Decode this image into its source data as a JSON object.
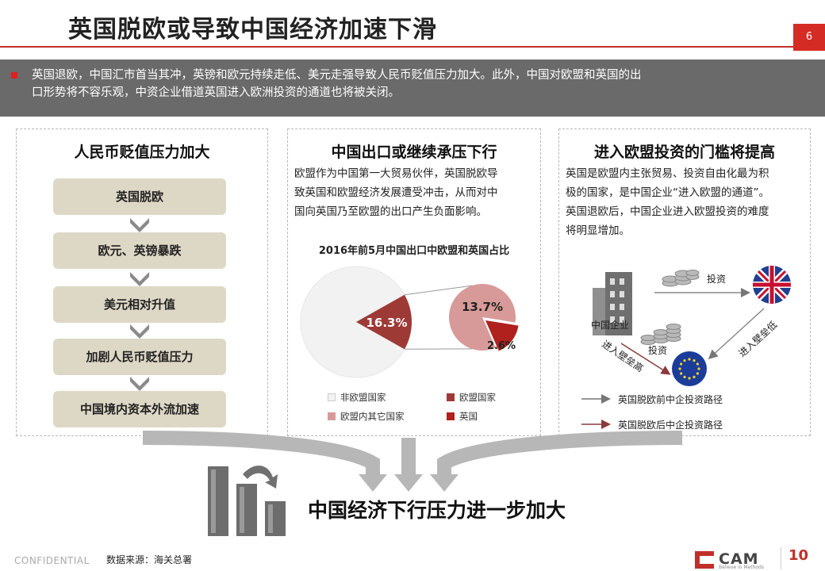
{
  "header": {
    "title": "英国脱欧或导致中国经济加速下滑",
    "page_number": "6"
  },
  "intro": {
    "line1": "英国退欧，中国汇市首当其冲，英镑和欧元持续走低、美元走强导致人民币贬值压力加大。此外，中国对欧盟和英国的出",
    "line2": "口形势将不容乐观，中资企业借道英国进入欧洲投资的通道也将被关闭。"
  },
  "panel_left": {
    "title": "人民币贬值压力加大",
    "steps": [
      "英国脱欧",
      "欧元、英镑暴跌",
      "美元相对升值",
      "加剧人民币贬值压力",
      "中国境内资本外流加速"
    ]
  },
  "panel_middle": {
    "title": "中国出口或继续承压下行",
    "body_lines": [
      "欧盟作为中国第一大贸易伙伴，英国脱欧导",
      "致英国和欧盟经济发展遭受冲击，从而对中",
      "国向英国乃至欧盟的出口产生负面影响。"
    ]
  },
  "panel_right": {
    "title": "进入欧盟投资的门槛将提高",
    "body_lines": [
      "英国是欧盟内主张贸易、投资自由化最为积",
      "极的国家，是中国企业“进入欧盟的通道”。",
      "英国退欧后，中国企业进入欧盟投资的难度",
      "将明显增加。"
    ],
    "diagram": {
      "label_invest_top": "投资",
      "label_china_firm": "中国企业",
      "label_invest_mid": "投资",
      "label_barrier_high": "进入壁垒高",
      "label_barrier_low": "进入壁垒低",
      "legend_before": "英国脱欧前中企投资路径",
      "legend_after": "英国脱欧后中企投资路径"
    }
  },
  "chart_data": {
    "type": "pie",
    "title": "2016年前5月中国出口中欧盟和英国占比",
    "slices": [
      {
        "name": "非欧盟国家",
        "value": 83.7,
        "color": "#f2f2f2"
      },
      {
        "name": "欧盟国家",
        "value": 16.3,
        "color": "#9e3a36",
        "label": "16.3%"
      }
    ],
    "breakdown": [
      {
        "name": "欧盟内其它国家",
        "value": 13.7,
        "color": "#d89a98",
        "label": "13.7%"
      },
      {
        "name": "英国",
        "value": 2.6,
        "color": "#b0201c",
        "label": "2.6%"
      }
    ],
    "legend": [
      "非欧盟国家",
      "欧盟国家",
      "欧盟内其它国家",
      "英国"
    ]
  },
  "conclusion": "中国经济下行压力进一步加大",
  "footer": {
    "confidential": "CONFIDENTIAL",
    "source": "数据来源：海关总署",
    "brand": "CAM",
    "brand_tagline": "Believe in Methods",
    "badge": "10"
  }
}
